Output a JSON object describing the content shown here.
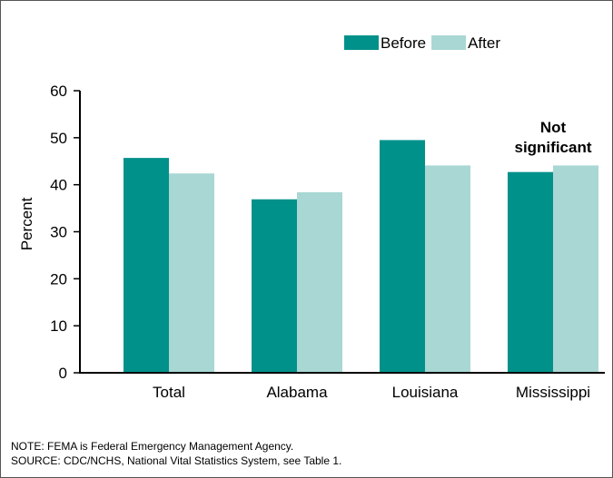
{
  "chart_data": {
    "type": "bar",
    "categories": [
      "Total",
      "Alabama",
      "Louisiana",
      "Mississippi"
    ],
    "series": [
      {
        "name": "Before",
        "color": "#00918a",
        "values": [
          45.7,
          36.9,
          49.5,
          42.7
        ]
      },
      {
        "name": "After",
        "color": "#a9d7d3",
        "values": [
          42.4,
          38.4,
          44.1,
          44.1
        ]
      }
    ],
    "ylabel": "Percent",
    "xlabel": "",
    "ylim": [
      0,
      60
    ],
    "yticks": [
      0,
      10,
      20,
      30,
      40,
      50,
      60
    ],
    "grid": false,
    "legend_position": "top-right",
    "annotations": [
      {
        "category": "Mississippi",
        "lines": [
          "Not",
          "significant"
        ]
      }
    ]
  },
  "notes": {
    "note": "NOTE: FEMA is Federal Emergency Management Agency.",
    "source": "SOURCE: CDC/NCHS, National Vital Statistics System, see Table 1."
  }
}
